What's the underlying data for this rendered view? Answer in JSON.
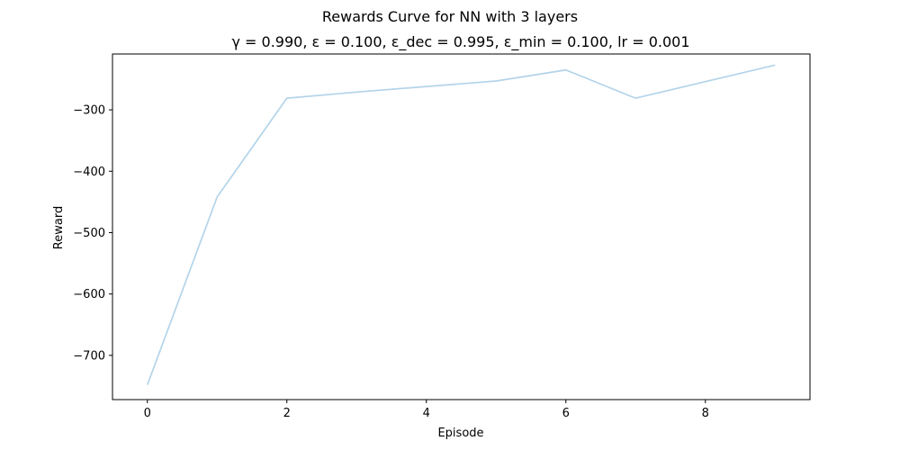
{
  "chart_data": {
    "type": "line",
    "suptitle": "Rewards Curve for NN with 3 layers",
    "title": "γ = 0.990, ε = 0.100, ε_dec = 0.995, ε_min = 0.100, lr = 0.001",
    "xlabel": "Episode",
    "ylabel": "Reward",
    "xlim": [
      -0.5,
      9.5
    ],
    "ylim": [
      -772,
      -209
    ],
    "xticks": [
      0,
      2,
      4,
      6,
      8
    ],
    "yticks": [
      -700,
      -600,
      -500,
      -400,
      -300
    ],
    "xtick_labels": [
      "0",
      "2",
      "4",
      "6",
      "8"
    ],
    "ytick_labels": [
      "−700",
      "−600",
      "−500",
      "−400",
      "−300"
    ],
    "grid": false,
    "series": [
      {
        "color": "#b3d4ea",
        "x": [
          0,
          1,
          2,
          3,
          4,
          5,
          6,
          7,
          8,
          9
        ],
        "y": [
          -748,
          -442,
          -281,
          -271,
          -262,
          -253,
          -235,
          -281,
          -254,
          -227
        ]
      }
    ]
  }
}
